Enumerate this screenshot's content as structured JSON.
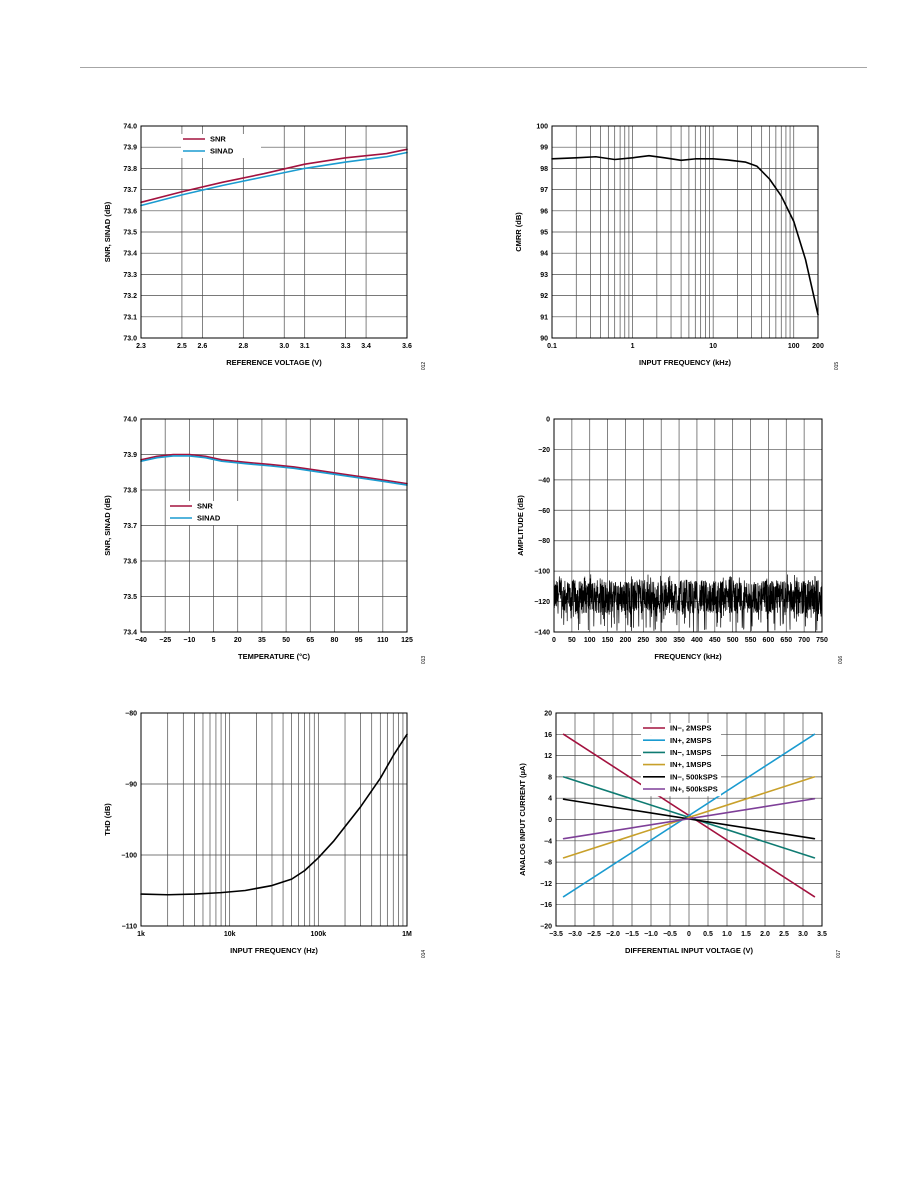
{
  "chart_data": [
    {
      "id": "c1",
      "type": "line",
      "xlabel": "REFERENCE VOLTAGE (V)",
      "ylabel": "SNR, SINAD (dB)",
      "figure_label": "012",
      "xlim": [
        2.3,
        3.6
      ],
      "ylim": [
        73.0,
        74.0
      ],
      "x_ticks": [
        2.3,
        2.5,
        2.6,
        2.8,
        3.0,
        3.1,
        3.3,
        3.4,
        3.6
      ],
      "x_tick_labels": [
        "2.3",
        "2.5",
        "2.6",
        "2.8",
        "3.0",
        "3.1",
        "3.3",
        "3.4",
        "3.6"
      ],
      "y_ticks": [
        73.0,
        73.1,
        73.2,
        73.3,
        73.4,
        73.5,
        73.6,
        73.7,
        73.8,
        73.9,
        74.0
      ],
      "y_tick_labels": [
        "73.0",
        "73.1",
        "73.2",
        "73.3",
        "73.4",
        "73.5",
        "73.6",
        "73.7",
        "73.8",
        "73.9",
        "74.0"
      ],
      "legend": "top-left",
      "series": [
        {
          "name": "SNR",
          "color": "#a3123f",
          "x": [
            2.3,
            2.5,
            2.7,
            2.9,
            3.1,
            3.3,
            3.5,
            3.6
          ],
          "y": [
            73.64,
            73.69,
            73.735,
            73.775,
            73.82,
            73.85,
            73.87,
            73.89
          ]
        },
        {
          "name": "SINAD",
          "color": "#1a9bd0",
          "x": [
            2.3,
            2.5,
            2.7,
            2.9,
            3.1,
            3.3,
            3.5,
            3.6
          ],
          "y": [
            73.625,
            73.675,
            73.72,
            73.76,
            73.8,
            73.83,
            73.855,
            73.875
          ]
        }
      ]
    },
    {
      "id": "c2",
      "type": "line",
      "xlabel": "INPUT FREQUENCY (kHz)",
      "ylabel": "CMRR (dB)",
      "figure_label": "015",
      "xscale": "log",
      "xlim": [
        0.1,
        200
      ],
      "ylim": [
        90,
        100
      ],
      "x_ticks": [
        0.1,
        1,
        10,
        100,
        200
      ],
      "x_tick_labels": [
        "0.1",
        "1",
        "10",
        "100",
        "200"
      ],
      "y_ticks": [
        90,
        91,
        92,
        93,
        94,
        95,
        96,
        97,
        98,
        99,
        100
      ],
      "y_tick_labels": [
        "90",
        "91",
        "92",
        "93",
        "94",
        "95",
        "96",
        "97",
        "98",
        "99",
        "100"
      ],
      "series": [
        {
          "color": "#000000",
          "x": [
            0.1,
            0.2,
            0.35,
            0.6,
            1,
            1.6,
            2.5,
            4,
            6,
            10,
            15,
            25,
            35,
            50,
            70,
            100,
            140,
            200
          ],
          "y": [
            98.45,
            98.5,
            98.55,
            98.42,
            98.5,
            98.6,
            98.5,
            98.38,
            98.45,
            98.45,
            98.4,
            98.3,
            98.1,
            97.5,
            96.7,
            95.5,
            93.7,
            91.1
          ]
        }
      ]
    },
    {
      "id": "c3",
      "type": "line",
      "xlabel": "TEMPERATURE (°C)",
      "ylabel": "SNR, SINAD (dB)",
      "figure_label": "013",
      "xlim": [
        -40,
        125
      ],
      "ylim": [
        73.4,
        74.0
      ],
      "x_ticks": [
        -40,
        -25,
        -10,
        5,
        20,
        35,
        50,
        65,
        80,
        95,
        110,
        125
      ],
      "x_tick_labels": [
        "−40",
        "−25",
        "−10",
        "5",
        "20",
        "35",
        "50",
        "65",
        "80",
        "95",
        "110",
        "125"
      ],
      "y_ticks": [
        73.4,
        73.5,
        73.6,
        73.7,
        73.8,
        73.9,
        74.0
      ],
      "y_tick_labels": [
        "73.4",
        "73.5",
        "73.6",
        "73.7",
        "73.8",
        "73.9",
        "74.0"
      ],
      "legend": "left",
      "series": [
        {
          "name": "SNR",
          "color": "#a3123f",
          "x": [
            -40,
            -30,
            -20,
            -10,
            0,
            10,
            25,
            40,
            55,
            70,
            85,
            100,
            115,
            125
          ],
          "y": [
            73.885,
            73.895,
            73.9,
            73.9,
            73.895,
            73.885,
            73.878,
            73.872,
            73.865,
            73.855,
            73.845,
            73.835,
            73.825,
            73.818
          ]
        },
        {
          "name": "SINAD",
          "color": "#1a9bd0",
          "x": [
            -40,
            -30,
            -20,
            -10,
            0,
            10,
            25,
            40,
            55,
            70,
            85,
            100,
            115,
            125
          ],
          "y": [
            73.881,
            73.891,
            73.896,
            73.896,
            73.891,
            73.881,
            73.874,
            73.868,
            73.861,
            73.851,
            73.841,
            73.831,
            73.821,
            73.814
          ]
        }
      ]
    },
    {
      "id": "c4",
      "type": "line",
      "xlabel": "FREQUENCY (kHz)",
      "ylabel": "AMPLITUDE (dB)",
      "figure_label": "016",
      "xlim": [
        0,
        750
      ],
      "ylim": [
        -140,
        0
      ],
      "x_ticks": [
        0,
        50,
        100,
        150,
        200,
        250,
        300,
        350,
        400,
        450,
        500,
        550,
        600,
        650,
        700,
        750
      ],
      "x_tick_labels": [
        "0",
        "50",
        "100",
        "150",
        "200",
        "250",
        "300",
        "350",
        "400",
        "450",
        "500",
        "550",
        "600",
        "650",
        "700",
        "750"
      ],
      "y_ticks": [
        -140,
        -120,
        -100,
        -80,
        -60,
        -40,
        -20,
        0
      ],
      "y_tick_labels": [
        "−140",
        "−120",
        "−100",
        "−80",
        "−60",
        "−40",
        "−20",
        "0"
      ],
      "noise_floor": {
        "center": -117,
        "spread": 11,
        "min": -140,
        "max": -102,
        "color": "#000000"
      }
    },
    {
      "id": "c5",
      "type": "line",
      "xlabel": "INPUT FREQUENCY (Hz)",
      "ylabel": "THD (dB)",
      "figure_label": "014",
      "xscale": "log",
      "xlim": [
        1000,
        1000000
      ],
      "ylim": [
        -110,
        -80
      ],
      "x_ticks": [
        1000,
        10000,
        100000,
        1000000
      ],
      "x_tick_labels": [
        "1k",
        "10k",
        "100k",
        "1M"
      ],
      "y_ticks": [
        -110,
        -100,
        -90,
        -80
      ],
      "y_tick_labels": [
        "−110",
        "−100",
        "−90",
        "−80"
      ],
      "series": [
        {
          "color": "#000000",
          "x": [
            1000,
            2000,
            4000,
            8000,
            15000,
            30000,
            50000,
            70000,
            100000,
            150000,
            200000,
            300000,
            500000,
            700000,
            1000000
          ],
          "y": [
            -105.5,
            -105.6,
            -105.5,
            -105.3,
            -105.0,
            -104.3,
            -103.4,
            -102.2,
            -100.4,
            -98.0,
            -96.0,
            -93.2,
            -89.2,
            -86.0,
            -83.0
          ]
        }
      ]
    },
    {
      "id": "c6",
      "type": "line",
      "xlabel": "DIFFERENTIAL INPUT VOLTAGE (V)",
      "ylabel": "ANALOG INPUT CURRENT (µA)",
      "figure_label": "017",
      "xlim": [
        -3.5,
        3.5
      ],
      "ylim": [
        -20,
        20
      ],
      "x_ticks": [
        -3.5,
        -3.0,
        -2.5,
        -2.0,
        -1.5,
        -1.0,
        -0.5,
        0,
        0.5,
        1.0,
        1.5,
        2.0,
        2.5,
        3.0,
        3.5
      ],
      "x_tick_labels": [
        "−3.5",
        "−3.0",
        "−2.5",
        "−2.0",
        "−1.5",
        "−1.0",
        "−0.5",
        "0",
        "0.5",
        "1.0",
        "1.5",
        "2.0",
        "2.5",
        "3.0",
        "3.5"
      ],
      "y_ticks": [
        -20,
        -16,
        -12,
        -8,
        -4,
        0,
        4,
        8,
        12,
        16,
        20
      ],
      "y_tick_labels": [
        "−20",
        "−16",
        "−12",
        "−8",
        "−4",
        "0",
        "4",
        "8",
        "12",
        "16",
        "20"
      ],
      "legend": "top",
      "series": [
        {
          "name": "IN−, 2MSPS",
          "color": "#a3123f",
          "x": [
            -3.3,
            3.3
          ],
          "y": [
            16,
            -14.5
          ]
        },
        {
          "name": "IN+, 2MSPS",
          "color": "#1a9bd0",
          "x": [
            -3.3,
            3.3
          ],
          "y": [
            -14.5,
            16
          ]
        },
        {
          "name": "IN−, 1MSPS",
          "color": "#0f7b72",
          "x": [
            -3.3,
            3.3
          ],
          "y": [
            8,
            -7.2
          ]
        },
        {
          "name": "IN+, 1MSPS",
          "color": "#c8a02a",
          "x": [
            -3.3,
            3.3
          ],
          "y": [
            -7.2,
            8
          ]
        },
        {
          "name": "IN−, 500kSPS",
          "color": "#000000",
          "x": [
            -3.3,
            3.3
          ],
          "y": [
            3.8,
            -3.6
          ]
        },
        {
          "name": "IN+, 500kSPS",
          "color": "#7e3f98",
          "x": [
            -3.3,
            3.3
          ],
          "y": [
            -3.6,
            3.9
          ]
        }
      ]
    }
  ]
}
